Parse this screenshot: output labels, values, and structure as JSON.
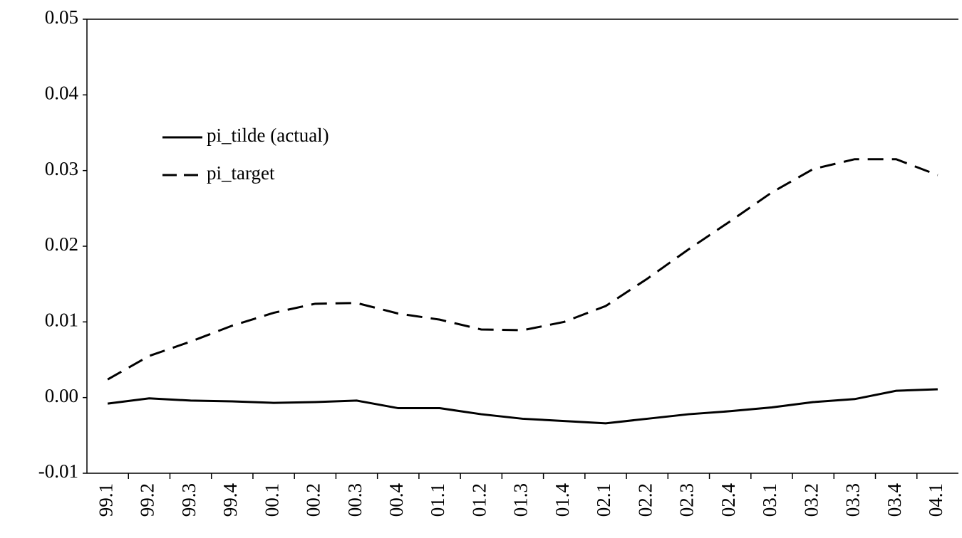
{
  "chart_data": {
    "type": "line",
    "categories": [
      "99.1",
      "99.2",
      "99.3",
      "99.4",
      "00.1",
      "00.2",
      "00.3",
      "00.4",
      "01.1",
      "01.2",
      "01.3",
      "01.4",
      "02.1",
      "02.2",
      "02.3",
      "02.4",
      "03.1",
      "03.2",
      "03.3",
      "03.4",
      "04.1"
    ],
    "series": [
      {
        "name": "pi_tilde (actual)",
        "color": "#000000",
        "linestyle": "solid",
        "values": [
          -0.0008,
          -0.0001,
          -0.0004,
          -0.0005,
          -0.0007,
          -0.0006,
          -0.0004,
          -0.0014,
          -0.0014,
          -0.0022,
          -0.0028,
          -0.0031,
          -0.0034,
          -0.0028,
          -0.0022,
          -0.0018,
          -0.0013,
          -0.0006,
          -0.0002,
          0.0009,
          0.0011
        ]
      },
      {
        "name": "pi_target",
        "color": "#000000",
        "linestyle": "dashed",
        "values": [
          0.0024,
          0.0055,
          0.0074,
          0.0095,
          0.0112,
          0.0124,
          0.0125,
          0.0111,
          0.0103,
          0.009,
          0.0089,
          0.01,
          0.0121,
          0.0157,
          0.0196,
          0.0233,
          0.0271,
          0.0302,
          0.0315,
          0.0315,
          0.0294
        ]
      }
    ],
    "ylim": [
      -0.01,
      0.05
    ],
    "yticks": [
      -0.01,
      {
        "value": 0,
        "label": "0.00"
      },
      0.01,
      0.02,
      0.03,
      0.04,
      0.05
    ],
    "legend": "upper left"
  }
}
